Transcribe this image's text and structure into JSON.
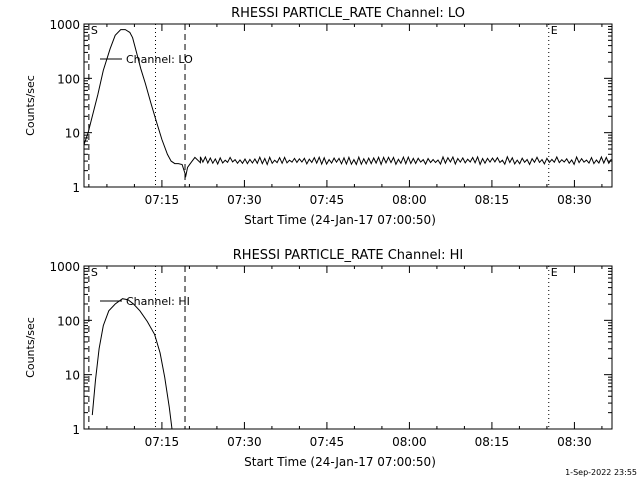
{
  "footer_stamp": "1-Sep-2022 23:55",
  "chart_data": [
    {
      "type": "line",
      "title": "RHESSI PARTICLE_RATE Channel: LO",
      "xlabel": "Start Time (24-Jan-17 07:00:50)",
      "ylabel": "Counts/sec",
      "y_scale": "log",
      "ylim": [
        1,
        1000
      ],
      "xlim_minutes": [
        0,
        96
      ],
      "x_tick_labels": [
        "07:15",
        "07:30",
        "07:45",
        "08:00",
        "08:15",
        "08:30"
      ],
      "y_tick_labels": [
        "1",
        "10",
        "100",
        "1000"
      ],
      "legend": "Channel: LO",
      "markers": [
        {
          "label": "S",
          "style": "dashed",
          "time": "07:01:43"
        },
        {
          "label": "",
          "style": "dotted",
          "time": "07:13:50"
        },
        {
          "label": "",
          "style": "dashed",
          "time": "07:19:12"
        },
        {
          "label": "E",
          "style": "dotted",
          "time": "08:25:20"
        },
        {
          "label": "",
          "style": "dotted",
          "time": "08:36:50"
        }
      ],
      "series": [
        {
          "name": "Channel: LO",
          "time": [
            "07:00:50",
            "07:01:35",
            "07:02:20",
            "07:03:20",
            "07:04:20",
            "07:05:35",
            "07:06:30",
            "07:07:30",
            "07:08:20",
            "07:09:10",
            "07:09:40",
            "07:10:20",
            "07:11:10",
            "07:12:00",
            "07:13:00",
            "07:14:00",
            "07:15:00",
            "07:16:00",
            "07:16:40",
            "07:17:20",
            "07:18:00",
            "07:18:40",
            "07:19:20",
            "07:19:40",
            "07:20:10",
            "07:21:00",
            "07:22:00"
          ],
          "values": [
            6,
            10,
            20,
            50,
            140,
            350,
            620,
            790,
            790,
            700,
            560,
            310,
            150,
            80,
            35,
            16,
            7.5,
            4,
            3,
            2.7,
            2.7,
            2.6,
            1.6,
            2.3,
            2.7,
            3.5,
            2.8
          ],
          "baseline_segment": {
            "from": "07:22:00",
            "to": "08:36:50",
            "low": 2.6,
            "high": 3.6
          }
        }
      ]
    },
    {
      "type": "line",
      "title": "RHESSI PARTICLE_RATE Channel: HI",
      "xlabel": "Start Time (24-Jan-17 07:00:50)",
      "ylabel": "Counts/sec",
      "y_scale": "log",
      "ylim": [
        1,
        1000
      ],
      "xlim_minutes": [
        0,
        96
      ],
      "x_tick_labels": [
        "07:15",
        "07:30",
        "07:45",
        "08:00",
        "08:15",
        "08:30"
      ],
      "y_tick_labels": [
        "1",
        "10",
        "100",
        "1000"
      ],
      "legend": "Channel: HI",
      "markers": [
        {
          "label": "S",
          "style": "dashed",
          "time": "07:01:43"
        },
        {
          "label": "",
          "style": "dotted",
          "time": "07:13:50"
        },
        {
          "label": "",
          "style": "dashed",
          "time": "07:19:12"
        },
        {
          "label": "E",
          "style": "dotted",
          "time": "08:25:20"
        },
        {
          "label": "",
          "style": "dotted",
          "time": "08:36:50"
        }
      ],
      "series": [
        {
          "name": "Channel: HI",
          "time": [
            "07:02:20",
            "07:02:55",
            "07:03:35",
            "07:04:20",
            "07:05:20",
            "07:06:30",
            "07:07:50",
            "07:08:50",
            "07:09:50",
            "07:11:00",
            "07:12:20",
            "07:13:40",
            "07:14:40",
            "07:15:30",
            "07:16:20",
            "07:16:50"
          ],
          "values": [
            1.8,
            8,
            30,
            80,
            150,
            200,
            250,
            240,
            200,
            150,
            95,
            55,
            25,
            9,
            2.5,
            1
          ]
        }
      ]
    }
  ]
}
